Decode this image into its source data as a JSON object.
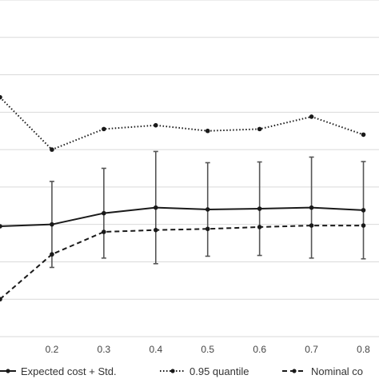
{
  "chart_data": {
    "type": "line",
    "x_tick_labels": [
      "0.2",
      "0.3",
      "0.4",
      "0.5",
      "0.6",
      "0.7",
      "0.8"
    ],
    "xlim": [
      0.1,
      0.83
    ],
    "ylim": [
      0,
      9
    ],
    "grid": "horizontal",
    "legend": "bottom",
    "series": [
      {
        "name": "Expected cost + Std.",
        "style": "solid",
        "color": "#1a1a1a",
        "x": [
          0.1,
          0.2,
          0.3,
          0.4,
          0.5,
          0.6,
          0.7,
          0.8
        ],
        "y": [
          2.95,
          3.0,
          3.3,
          3.45,
          3.4,
          3.42,
          3.45,
          3.38
        ],
        "error": [
          null,
          1.15,
          1.2,
          1.5,
          1.25,
          1.25,
          1.35,
          1.3
        ]
      },
      {
        "name": "0.95 quantile",
        "style": "dotted",
        "color": "#1a1a1a",
        "x": [
          0.1,
          0.2,
          0.3,
          0.4,
          0.5,
          0.6,
          0.7,
          0.8
        ],
        "y": [
          6.4,
          5.0,
          5.55,
          5.65,
          5.5,
          5.55,
          5.88,
          5.4
        ]
      },
      {
        "name": "Nominal co",
        "style": "dashed",
        "color": "#1a1a1a",
        "x": [
          0.1,
          0.2,
          0.3,
          0.4,
          0.5,
          0.6,
          0.7,
          0.8
        ],
        "y": [
          1.0,
          2.2,
          2.8,
          2.85,
          2.88,
          2.93,
          2.97,
          2.97
        ]
      }
    ]
  }
}
